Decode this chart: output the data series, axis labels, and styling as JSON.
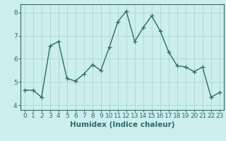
{
  "x": [
    0,
    1,
    2,
    3,
    4,
    5,
    6,
    7,
    8,
    9,
    10,
    11,
    12,
    13,
    14,
    15,
    16,
    17,
    18,
    19,
    20,
    21,
    22,
    23
  ],
  "y": [
    4.65,
    4.65,
    4.35,
    6.55,
    6.75,
    5.15,
    5.05,
    5.35,
    5.75,
    5.5,
    6.5,
    7.6,
    8.05,
    6.75,
    7.35,
    7.85,
    7.2,
    6.3,
    5.7,
    5.65,
    5.45,
    5.65,
    4.35,
    4.55
  ],
  "line_color": "#2d6b6b",
  "marker": "+",
  "marker_size": 4,
  "bg_color": "#cceeed",
  "grid_color": "#aad8d5",
  "xlabel": "Humidex (Indice chaleur)",
  "xlim": [
    -0.5,
    23.5
  ],
  "ylim": [
    3.8,
    8.35
  ],
  "yticks": [
    4,
    5,
    6,
    7,
    8
  ],
  "xticks": [
    0,
    1,
    2,
    3,
    4,
    5,
    6,
    7,
    8,
    9,
    10,
    11,
    12,
    13,
    14,
    15,
    16,
    17,
    18,
    19,
    20,
    21,
    22,
    23
  ],
  "linewidth": 1.0,
  "xlabel_fontsize": 7.5,
  "tick_fontsize": 6.5
}
